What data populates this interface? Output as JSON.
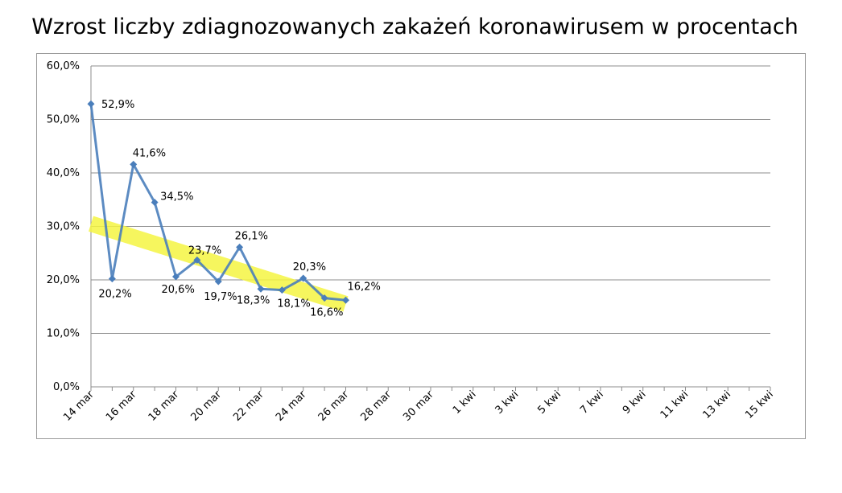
{
  "chart_data": {
    "type": "line",
    "title": "Wzrost liczby zdiagnozowanych zakażeń koronawirusem w procentach",
    "xlabel": "",
    "ylabel": "",
    "ylim": [
      0,
      60
    ],
    "y_ticks": [
      0,
      10,
      20,
      30,
      40,
      50,
      60
    ],
    "y_tick_labels": [
      "0,0%",
      "10,0%",
      "20,0%",
      "30,0%",
      "40,0%",
      "50,0%",
      "60,0%"
    ],
    "x_tick_labels": [
      "14 mar",
      "16 mar",
      "18 mar",
      "20 mar",
      "22 mar",
      "24 mar",
      "26 mar",
      "28 mar",
      "30 mar",
      "1 kwi",
      "3 kwi",
      "5 kwi",
      "7 kwi",
      "9 kwi",
      "11 kwi",
      "13 kwi",
      "15 kwi"
    ],
    "x_range_days": [
      0,
      32
    ],
    "grid": true,
    "legend": "none",
    "series": [
      {
        "color": "#4a7ebb",
        "x": [
          "14 mar",
          "15 mar",
          "16 mar",
          "17 mar",
          "18 mar",
          "19 mar",
          "20 mar",
          "21 mar",
          "22 mar",
          "23 mar",
          "24 mar",
          "25 mar",
          "26 mar"
        ],
        "values": [
          52.9,
          20.2,
          41.6,
          34.5,
          20.6,
          23.7,
          19.7,
          26.1,
          18.3,
          18.1,
          20.3,
          16.6,
          16.2
        ],
        "labels": [
          "52,9%",
          "20,2%",
          "41,6%",
          "34,5%",
          "20,6%",
          "23,7%",
          "19,7%",
          "26,1%",
          "18,3%",
          "18,1%",
          "20,3%",
          "16,6%",
          "16,2%"
        ]
      }
    ],
    "annotation": {
      "type": "trend-highlight",
      "color": "#f5f542",
      "from": {
        "x": "14 mar",
        "y": 30.5
      },
      "to": {
        "x": "26 mar",
        "y": 15.5
      }
    }
  }
}
